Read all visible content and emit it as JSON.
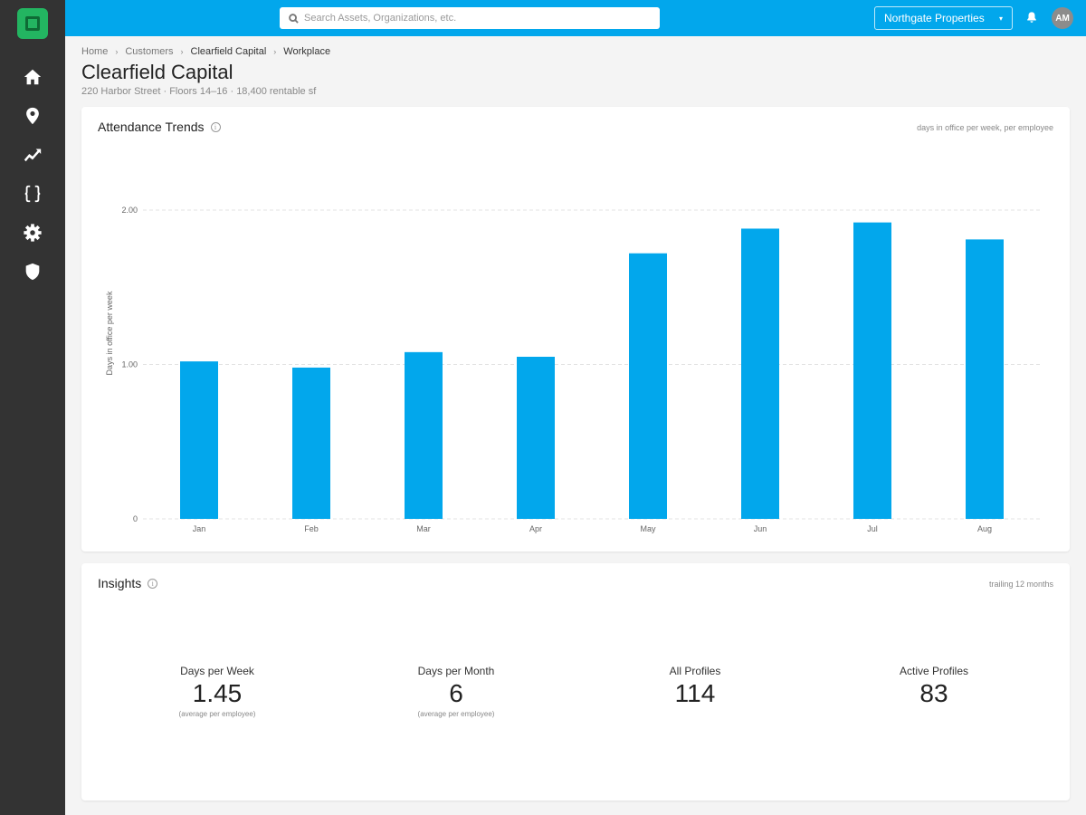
{
  "sidebar": {
    "logo": "app-logo",
    "items": [
      {
        "icon": "home-icon"
      },
      {
        "icon": "location-pin-icon"
      },
      {
        "icon": "trend-icon"
      },
      {
        "icon": "braces-icon"
      },
      {
        "icon": "gear-icon"
      },
      {
        "icon": "shield-icon"
      }
    ]
  },
  "topbar": {
    "search_placeholder": "Search Assets, Organizations, etc.",
    "org_selector": "Northgate Properties",
    "avatar_initials": "AM"
  },
  "breadcrumb": [
    "Home",
    "Customers",
    "Clearfield Capital",
    "Workplace"
  ],
  "page": {
    "title": "Clearfield Capital",
    "subtitle": "220 Harbor Street · Floors 14–16 · 18,400 rentable sf"
  },
  "attendance": {
    "title": "Attendance Trends",
    "note": "days in office per week, per employee"
  },
  "chart_data": {
    "type": "bar",
    "categories": [
      "Jan",
      "Feb",
      "Mar",
      "Apr",
      "May",
      "Jun",
      "Jul",
      "Aug"
    ],
    "values": [
      1.02,
      0.98,
      1.08,
      1.05,
      1.72,
      1.88,
      1.92,
      1.81
    ],
    "ylabel": "Days in office per week",
    "xlabel": "",
    "ylim": [
      0,
      2.2
    ],
    "yticks": [
      0,
      1.0,
      2.0
    ],
    "ytick_labels": [
      "0",
      "1.00",
      "2.00"
    ],
    "grid": true,
    "bar_color": "#02a7ec"
  },
  "insights": {
    "title": "Insights",
    "note": "trailing 12 months",
    "stats": [
      {
        "label": "Days per Week",
        "value": "1.45",
        "note": "(average per employee)"
      },
      {
        "label": "Days per Month",
        "value": "6",
        "note": "(average per employee)"
      },
      {
        "label": "All Profiles",
        "value": "114",
        "note": ""
      },
      {
        "label": "Active Profiles",
        "value": "83",
        "note": ""
      }
    ]
  },
  "colors": {
    "accent": "#02a7ec",
    "sidebar": "#333333",
    "logo": "#23b561"
  }
}
